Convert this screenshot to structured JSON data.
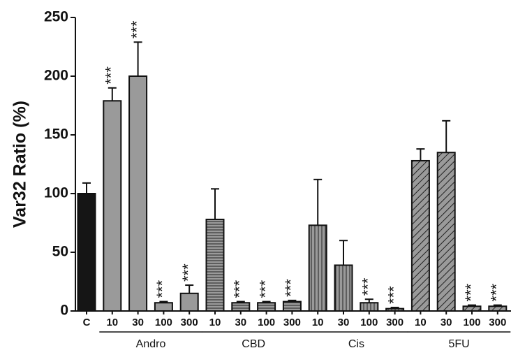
{
  "chart_data": {
    "type": "bar",
    "y_label": "Var32 Ratio (%)",
    "categories": [
      "C",
      "10",
      "30",
      "100",
      "300",
      "10",
      "30",
      "100",
      "300",
      "10",
      "30",
      "100",
      "300",
      "10",
      "30",
      "100",
      "300"
    ],
    "groups": [
      "Andro",
      "CBD",
      "Cis",
      "5FU"
    ],
    "values": [
      100,
      179,
      200,
      7,
      15,
      78,
      7,
      7,
      8,
      73,
      39,
      7,
      2,
      128,
      135,
      4,
      4
    ],
    "errors": [
      9,
      11,
      29,
      1,
      7,
      26,
      1,
      1,
      1,
      39,
      21,
      3,
      1,
      10,
      27,
      1,
      1
    ],
    "significance": [
      null,
      "***",
      "***",
      "***",
      "***",
      null,
      "***",
      "***",
      "***",
      null,
      null,
      "***",
      "***",
      null,
      null,
      "***",
      "***"
    ],
    "patterns": [
      "dark",
      "plain",
      "plain",
      "plain",
      "plain",
      "hlines",
      "hlines",
      "hlines",
      "hlines",
      "vlines",
      "vlines",
      "vlines",
      "vlines",
      "diagonal",
      "diagonal",
      "diagonal",
      "diagonal"
    ],
    "color": "#9a9a9a",
    "ylim": [
      0,
      250
    ],
    "yticks": [
      0,
      50,
      100,
      150,
      200,
      250
    ]
  }
}
